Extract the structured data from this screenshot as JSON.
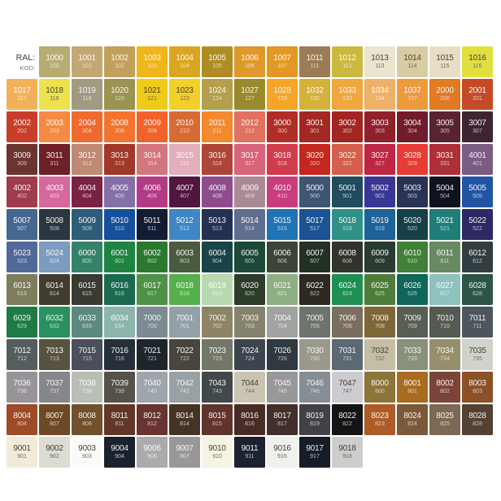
{
  "chart_data": {
    "type": "table",
    "title": "RAL color chart",
    "columns": 15,
    "header": {
      "ral_label": "RAL:",
      "kod_label": "KOD:"
    },
    "text_colors": {
      "on_dark_swatch": "#FFFFFF",
      "on_light_swatch": "#474334"
    },
    "dark_text_cells": [
      "1013",
      "1014",
      "1015",
      "1016",
      "1018",
      "1021",
      "1023",
      "7032",
      "7035",
      "7044",
      "7047",
      "9001",
      "9002",
      "9003",
      "9010",
      "9016",
      "9018"
    ],
    "rows": [
      [
        [
          "1000",
          "100",
          "#B7AC72"
        ],
        [
          "1001",
          "101",
          "#C4A873"
        ],
        [
          "1002",
          "102",
          "#C2A05C"
        ],
        [
          "1003",
          "103",
          "#EFB51B"
        ],
        [
          "1004",
          "104",
          "#DBA51F"
        ],
        [
          "1005",
          "105",
          "#B08C25"
        ],
        [
          "1006",
          "106",
          "#DE992A"
        ],
        [
          "1007",
          "107",
          "#E29823"
        ],
        [
          "1011",
          "111",
          "#9C7C54"
        ],
        [
          "1012",
          "112",
          "#CBB83E"
        ],
        [
          "1013",
          "113",
          "#E9E5CE"
        ],
        [
          "1014",
          "114",
          "#D9CCA3"
        ],
        [
          "1015",
          "115",
          "#E6DFC5"
        ],
        [
          "1016",
          "116",
          "#E1DF3F"
        ]
      ],
      [
        [
          "1017",
          "117",
          "#F2B159"
        ],
        [
          "1018",
          "118",
          "#EDE24D"
        ],
        [
          "1019",
          "119",
          "#A29983"
        ],
        [
          "1020",
          "120",
          "#9A9352"
        ],
        [
          "1021",
          "121",
          "#EFCA18"
        ],
        [
          "1023",
          "123",
          "#F3D029"
        ],
        [
          "1024",
          "124",
          "#B49F4C"
        ],
        [
          "1027",
          "127",
          "#998A2E"
        ],
        [
          "1028",
          "128",
          "#F5A528"
        ],
        [
          "1032",
          "132",
          "#D3B13B"
        ],
        [
          "1033",
          "133",
          "#F0A73E"
        ],
        [
          "1034",
          "134",
          "#EFB168"
        ],
        [
          "1037",
          "137",
          "#ED9A3F"
        ],
        [
          "2000",
          "200",
          "#E07A25"
        ],
        [
          "2001",
          "201",
          "#C54A27"
        ]
      ],
      [
        [
          "2002",
          "202",
          "#C93E2B"
        ],
        [
          "2003",
          "203",
          "#F68A44"
        ],
        [
          "2004",
          "204",
          "#EF6A2E"
        ],
        [
          "2008",
          "208",
          "#F4732D"
        ],
        [
          "2009",
          "209",
          "#F1632B"
        ],
        [
          "2010",
          "210",
          "#D76B35"
        ],
        [
          "2011",
          "211",
          "#F4892D"
        ],
        [
          "2012",
          "212",
          "#E17160"
        ],
        [
          "3000",
          "300",
          "#B02E25"
        ],
        [
          "3001",
          "301",
          "#A32722"
        ],
        [
          "3002",
          "302",
          "#A22521"
        ],
        [
          "3003",
          "303",
          "#90202A"
        ],
        [
          "3004",
          "304",
          "#701C2B"
        ],
        [
          "3005",
          "305",
          "#5A2330"
        ],
        [
          "3007",
          "307",
          "#3E2531"
        ]
      ],
      [
        [
          "3009",
          "309",
          "#6D342E"
        ],
        [
          "3011",
          "311",
          "#6E2026"
        ],
        [
          "3012",
          "312",
          "#C08971"
        ],
        [
          "3013",
          "313",
          "#A03929"
        ],
        [
          "3014",
          "314",
          "#D3777D"
        ],
        [
          "3015",
          "315",
          "#E2AEBA"
        ],
        [
          "3016",
          "316",
          "#AD4539"
        ],
        [
          "3017",
          "317",
          "#D8647A"
        ],
        [
          "3018",
          "318",
          "#D13C4D"
        ],
        [
          "3020",
          "320",
          "#C5271E"
        ],
        [
          "3022",
          "322",
          "#D45F4C"
        ],
        [
          "3027",
          "327",
          "#BD2744"
        ],
        [
          "3028",
          "328",
          "#E63C34"
        ],
        [
          "3031",
          "331",
          "#AD3038"
        ],
        [
          "4001",
          "401",
          "#7C5C83"
        ]
      ],
      [
        [
          "4002",
          "402",
          "#9F3C4E"
        ],
        [
          "4003",
          "403",
          "#D5699B"
        ],
        [
          "4004",
          "404",
          "#7A2146"
        ],
        [
          "4005",
          "405",
          "#8470A7"
        ],
        [
          "4006",
          "406",
          "#B33B86"
        ],
        [
          "4007",
          "407",
          "#511640"
        ],
        [
          "4008",
          "408",
          "#8E4C8D"
        ],
        [
          "4009",
          "409",
          "#AA8A96"
        ],
        [
          "4010",
          "410",
          "#C93D7F"
        ],
        [
          "5000",
          "500",
          "#3E5574"
        ],
        [
          "5001",
          "501",
          "#1F4C5E"
        ],
        [
          "5002",
          "502",
          "#3A3794"
        ],
        [
          "5003",
          "503",
          "#293355"
        ],
        [
          "5004",
          "504",
          "#0F1320"
        ],
        [
          "5005",
          "505",
          "#2254A3"
        ]
      ],
      [
        [
          "5007",
          "507",
          "#47688E"
        ],
        [
          "5008",
          "508",
          "#2B3640"
        ],
        [
          "5009",
          "509",
          "#2F5C79"
        ],
        [
          "5010",
          "510",
          "#164F9A"
        ],
        [
          "5011",
          "511",
          "#121D33"
        ],
        [
          "5012",
          "512",
          "#3F86C5"
        ],
        [
          "5013",
          "513",
          "#233052"
        ],
        [
          "5014",
          "514",
          "#5F6E8E"
        ],
        [
          "5015",
          "515",
          "#2173B5"
        ],
        [
          "5017",
          "517",
          "#1B5395"
        ],
        [
          "5018",
          "518",
          "#2F9187"
        ],
        [
          "5019",
          "519",
          "#1D6298"
        ],
        [
          "5020",
          "520",
          "#164048"
        ],
        [
          "5021",
          "521",
          "#1F7F78"
        ],
        [
          "5022",
          "522",
          "#2D2963"
        ]
      ],
      [
        [
          "5023",
          "523",
          "#50699A"
        ],
        [
          "5024",
          "524",
          "#7B9BBF"
        ],
        [
          "6000",
          "600",
          "#35826A"
        ],
        [
          "6001",
          "601",
          "#1F8441"
        ],
        [
          "6002",
          "602",
          "#2A792F"
        ],
        [
          "6003",
          "603",
          "#4B5B40"
        ],
        [
          "6004",
          "604",
          "#194449"
        ],
        [
          "6005",
          "605",
          "#1C4937"
        ],
        [
          "6006",
          "606",
          "#3E4338"
        ],
        [
          "6007",
          "607",
          "#233024"
        ],
        [
          "6008",
          "608",
          "#32332A"
        ],
        [
          "6009",
          "609",
          "#293B30"
        ],
        [
          "6010",
          "610",
          "#427F39"
        ],
        [
          "6011",
          "611",
          "#698963"
        ],
        [
          "6012",
          "612",
          "#323E41"
        ]
      ],
      [
        [
          "6013",
          "613",
          "#7D7D5B"
        ],
        [
          "6014",
          "614",
          "#413D2E"
        ],
        [
          "6015",
          "615",
          "#393B33"
        ],
        [
          "6016",
          "616",
          "#1A6A50"
        ],
        [
          "6017",
          "617",
          "#4E9147"
        ],
        [
          "6018",
          "618",
          "#55AF4B"
        ],
        [
          "6019",
          "619",
          "#B6D9B0"
        ],
        [
          "6020",
          "620",
          "#2D3B29"
        ],
        [
          "6021",
          "621",
          "#8EAF83"
        ],
        [
          "6022",
          "622",
          "#2D2920"
        ],
        [
          "6024",
          "624",
          "#1E8F53"
        ],
        [
          "6025",
          "625",
          "#4E7D3B"
        ],
        [
          "6026",
          "626",
          "#0F665A"
        ],
        [
          "6027",
          "627",
          "#8EC2BD"
        ],
        [
          "6028",
          "628",
          "#2D5448"
        ]
      ],
      [
        [
          "6029",
          "629",
          "#1E7B46"
        ],
        [
          "6032",
          "632",
          "#2A9160"
        ],
        [
          "6033",
          "633",
          "#5B897F"
        ],
        [
          "6034",
          "634",
          "#8CB5AE"
        ],
        [
          "7000",
          "700",
          "#7D8A92"
        ],
        [
          "7001",
          "701",
          "#94A0A8"
        ],
        [
          "7002",
          "702",
          "#8C8465"
        ],
        [
          "7003",
          "703",
          "#85836D"
        ],
        [
          "7004",
          "704",
          "#A0A3A0"
        ],
        [
          "7005",
          "705",
          "#6D746D"
        ],
        [
          "7006",
          "706",
          "#7A6F5F"
        ],
        [
          "7008",
          "708",
          "#7D6737"
        ],
        [
          "7009",
          "709",
          "#575F54"
        ],
        [
          "7010",
          "710",
          "#555A53"
        ],
        [
          "7011",
          "711",
          "#4D555D"
        ]
      ],
      [
        [
          "7012",
          "712",
          "#565D5F"
        ],
        [
          "7013",
          "713",
          "#575340"
        ],
        [
          "7015",
          "715",
          "#4A4F5B"
        ],
        [
          "7016",
          "716",
          "#26303A"
        ],
        [
          "7021",
          "721",
          "#1E252B"
        ],
        [
          "7022",
          "722",
          "#49453E"
        ],
        [
          "7023",
          "723",
          "#737767"
        ],
        [
          "7024",
          "724",
          "#3D444F"
        ],
        [
          "7026",
          "726",
          "#2E3940"
        ],
        [
          "7030",
          "730",
          "#9A998C"
        ],
        [
          "7031",
          "731",
          "#5C6873"
        ],
        [
          "7032",
          "732",
          "#C4BFA3"
        ],
        [
          "7033",
          "733",
          "#89907C"
        ],
        [
          "7034",
          "734",
          "#968F6B"
        ],
        [
          "7035",
          "735",
          "#CFD3CB"
        ]
      ],
      [
        [
          "7036",
          "736",
          "#989499"
        ],
        [
          "7037",
          "737",
          "#85878A"
        ],
        [
          "7038",
          "738",
          "#B9BFB6"
        ],
        [
          "7039",
          "739",
          "#56514A"
        ],
        [
          "7040",
          "740",
          "#9EA5AC"
        ],
        [
          "7042",
          "742",
          "#99A1A4"
        ],
        [
          "7043",
          "743",
          "#42494A"
        ],
        [
          "7044",
          "744",
          "#CAC5B2"
        ],
        [
          "7045",
          "745",
          "#98989A"
        ],
        [
          "7046",
          "746",
          "#868D94"
        ],
        [
          "7047",
          "747",
          "#CCCCD0"
        ],
        [
          "8000",
          "800",
          "#8D7438"
        ],
        [
          "8001",
          "801",
          "#A96B1F"
        ],
        [
          "8002",
          "802",
          "#7C4439"
        ],
        [
          "8003",
          "803",
          "#8C5127"
        ]
      ],
      [
        [
          "8004",
          "804",
          "#9D4C27"
        ],
        [
          "8007",
          "807",
          "#6F4926"
        ],
        [
          "8008",
          "808",
          "#70512B"
        ],
        [
          "8011",
          "811",
          "#623728"
        ],
        [
          "8012",
          "812",
          "#683430"
        ],
        [
          "8014",
          "814",
          "#453426"
        ],
        [
          "8015",
          "815",
          "#60342C"
        ],
        [
          "8016",
          "816",
          "#492B25"
        ],
        [
          "8017",
          "817",
          "#432F2A"
        ],
        [
          "8019",
          "819",
          "#424146"
        ],
        [
          "8022",
          "822",
          "#141316"
        ],
        [
          "8023",
          "823",
          "#AE5B28"
        ],
        [
          "8024",
          "824",
          "#7D593B"
        ],
        [
          "8025",
          "825",
          "#7D6953"
        ],
        [
          "8028",
          "828",
          "#534234"
        ]
      ],
      [
        [
          "9001",
          "901",
          "#F2EBD9"
        ],
        [
          "9002",
          "902",
          "#DBDCD2"
        ],
        [
          "9003",
          "903",
          "#FAFAF8"
        ],
        [
          "9004",
          "904",
          "#1B212D"
        ],
        [
          "9006",
          "906",
          "#ABABAD"
        ],
        [
          "9007",
          "907",
          "#999798"
        ],
        [
          "9010",
          "910",
          "#F6F3E5"
        ],
        [
          "9011",
          "911",
          "#1C2230"
        ],
        [
          "9016",
          "916",
          "#EFF1ED"
        ],
        [
          "9017",
          "917",
          "#161C28"
        ],
        [
          "9018",
          "918",
          "#CBCECB"
        ]
      ]
    ]
  }
}
